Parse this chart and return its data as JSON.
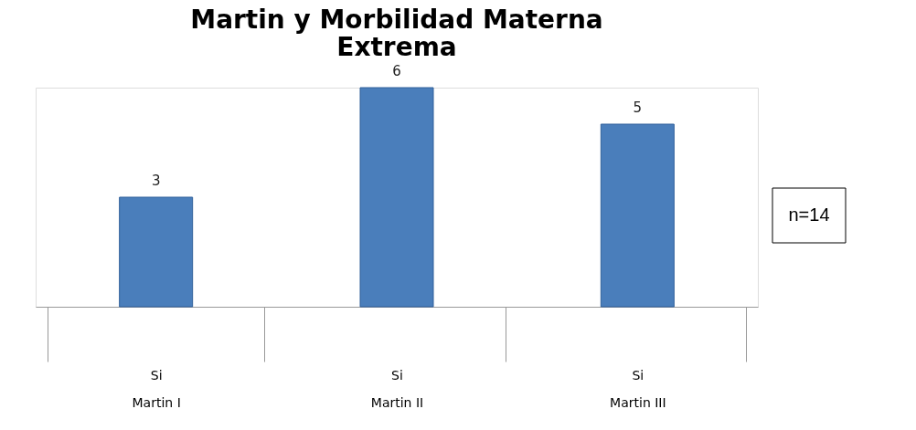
{
  "chart_data": {
    "type": "bar",
    "title": "Martin y Morbilidad Materna Extrema",
    "categories": [
      "Si\nMartin I",
      "Si\nMartin II",
      "Si\nMartin III"
    ],
    "values": [
      3,
      6,
      5
    ],
    "color": "#4a7ebb",
    "data_labels": true,
    "annotations": [
      "n=14"
    ]
  }
}
